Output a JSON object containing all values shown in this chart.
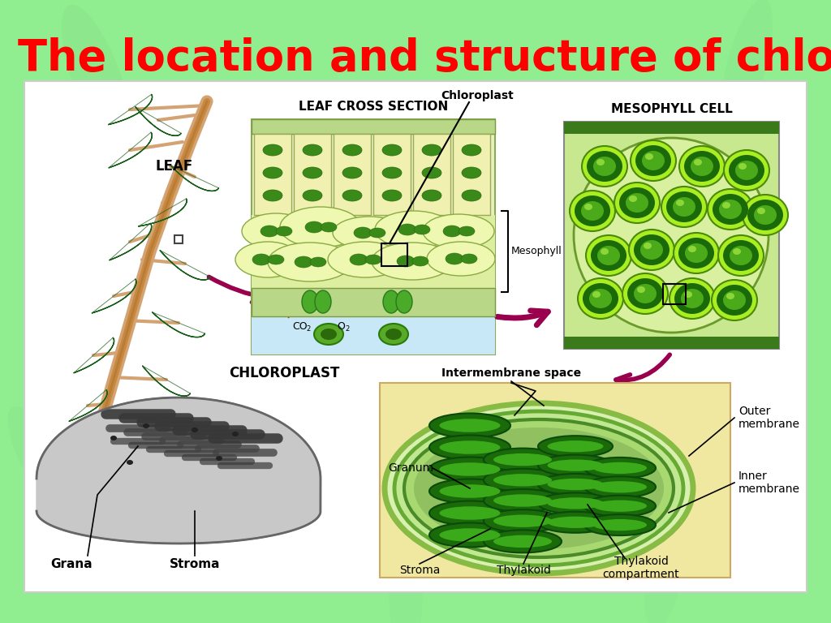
{
  "title": "The location and structure of chloroplasts",
  "title_color": "#ff0000",
  "title_fontsize": 38,
  "bg_color": "#90ee90",
  "panel_color": "#ffffff",
  "label_leaf": "LEAF",
  "label_cross": "LEAF CROSS SECTION",
  "label_meso_cell": "MESOPHYLL CELL",
  "label_chloro": "CHLOROPLAST",
  "label_intermem": "Intermembrane space",
  "label_chloroplast_top": "Chloroplast",
  "label_mesophyll": "Mesophyll",
  "label_co2": "CO",
  "label_o2": "O",
  "label_granum": "Granum",
  "label_stroma": "Stroma",
  "label_thylakoid": "Thylakoid",
  "label_thylakoid_comp": "Thylakoid\ncompartment",
  "label_outer_mem": "Outer\nmembrane",
  "label_inner_mem": "Inner\nmembrane",
  "label_grana": "Grana",
  "label_stroma_em": "Stroma",
  "arrow_color": "#99004d",
  "branch_color": "#d4a373",
  "branch_dark": "#c8893e",
  "leaf_dark": "#2d7a2d",
  "leaf_light": "#4aaa4a",
  "cell_fill": "#f0f0c0",
  "cell_border": "#aabb66",
  "chloro_blob": "#3a8a1a",
  "blue_air": "#c8e8f8",
  "gray_dark": "#555555",
  "gray_mid": "#888888",
  "gray_light": "#bbbbbb",
  "meso_bg_dark": "#2a5a1a",
  "meso_bg_light": "#4aaa2a",
  "cd_bg": "#f0e8a0",
  "cd_outer": "#88bb44",
  "cd_inner_fill": "#c8e8a0",
  "cd_stroma": "#a0c870",
  "thylakoid_dark": "#1a6a0a",
  "thylakoid_light": "#3aaa1a"
}
